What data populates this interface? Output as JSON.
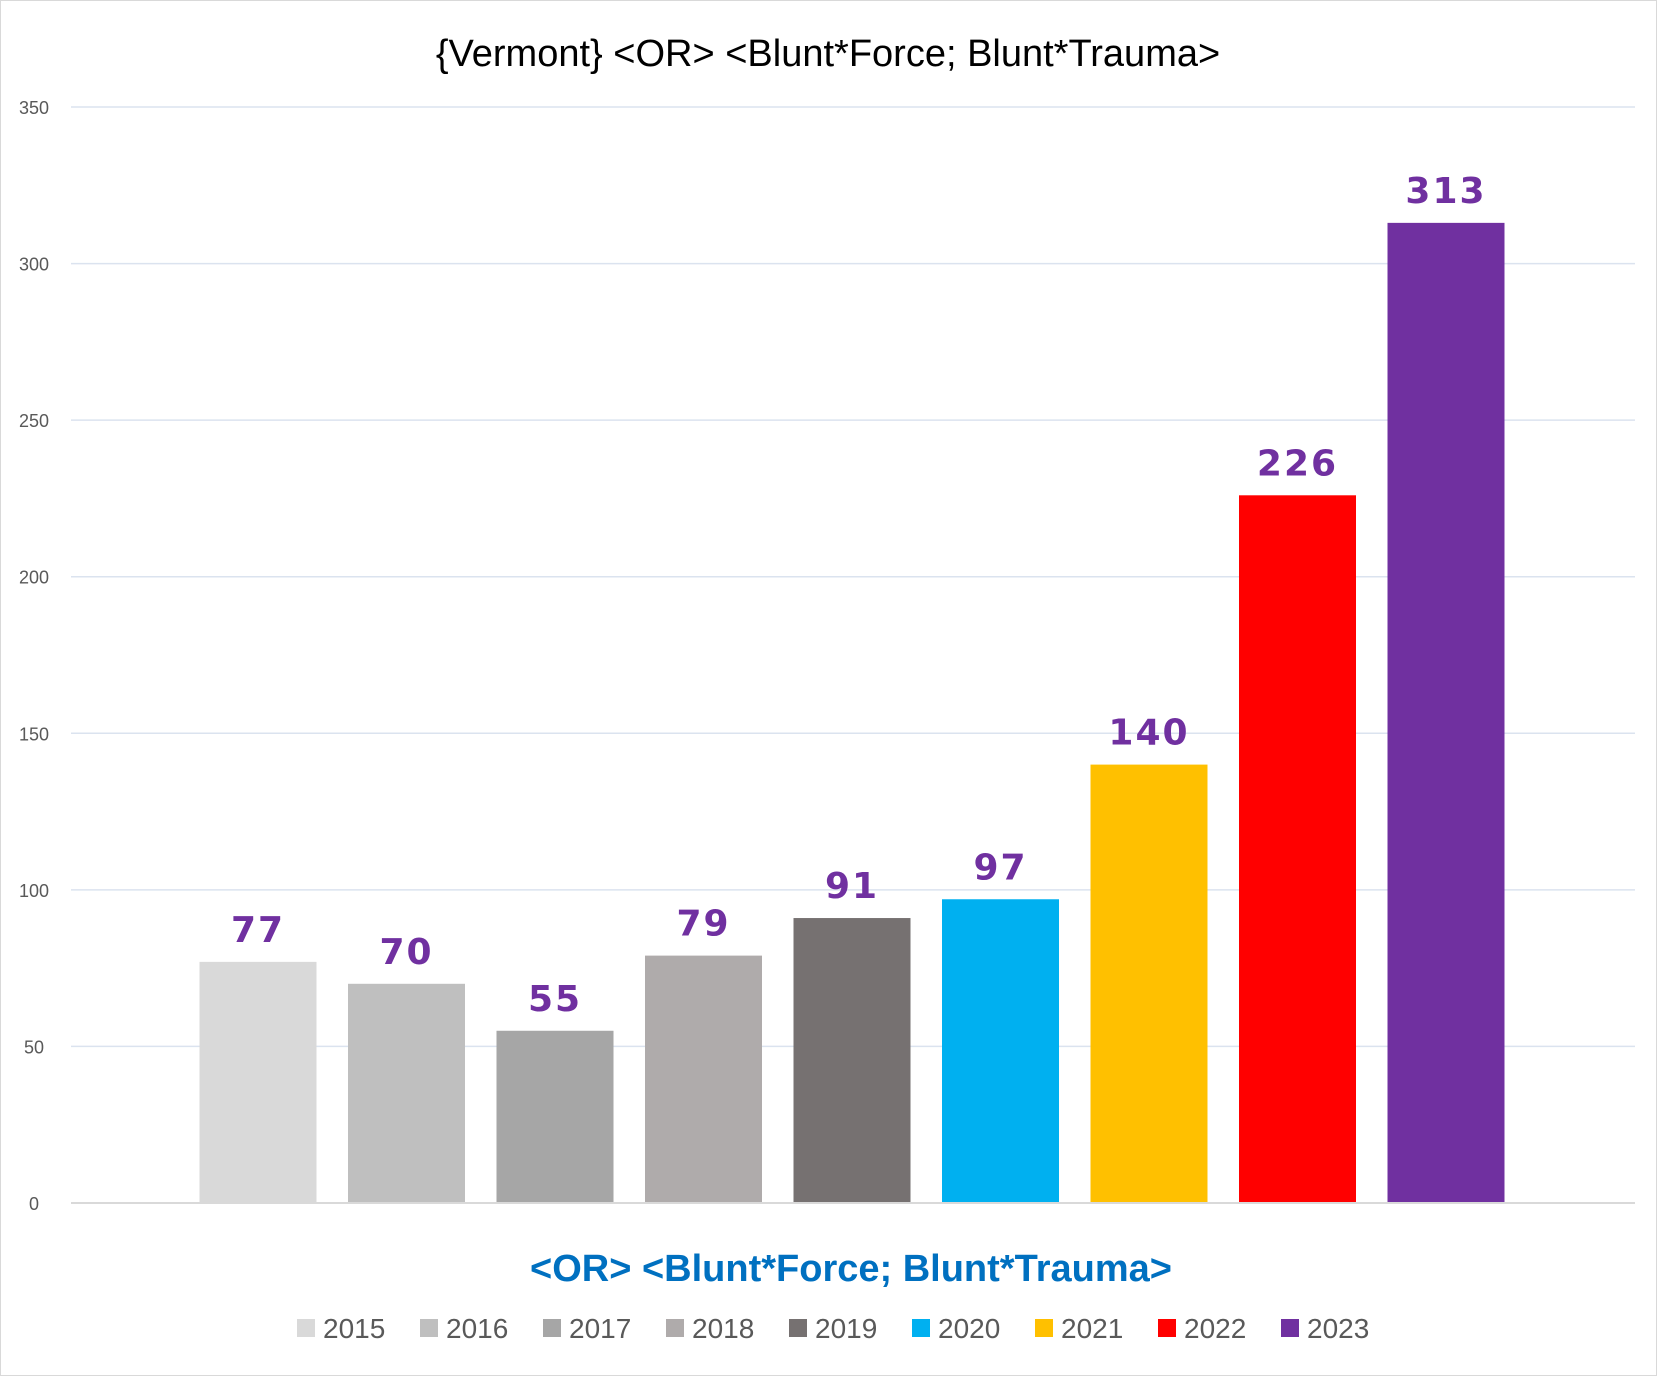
{
  "chart_data": {
    "type": "bar",
    "title": "{Vermont}  <OR> <Blunt*Force; Blunt*Trauma>",
    "xlabel": "<OR> <Blunt*Force; Blunt*Trauma>",
    "ylabel": "",
    "ylim": [
      0,
      350
    ],
    "yticks": [
      0,
      50,
      100,
      150,
      200,
      250,
      300,
      350
    ],
    "grid": true,
    "legend_position": "bottom",
    "categories": [
      "2015",
      "2016",
      "2017",
      "2018",
      "2019",
      "2020",
      "2021",
      "2022",
      "2023"
    ],
    "values": [
      77,
      70,
      55,
      79,
      91,
      97,
      140,
      226,
      313
    ],
    "colors": [
      "#d9d9d9",
      "#bfbfbf",
      "#a6a6a6",
      "#afabab",
      "#767171",
      "#00b0f0",
      "#ffc000",
      "#ff0000",
      "#7030a0"
    ],
    "value_label_color": "#7030a0",
    "xlabel_color": "#0070c0"
  }
}
